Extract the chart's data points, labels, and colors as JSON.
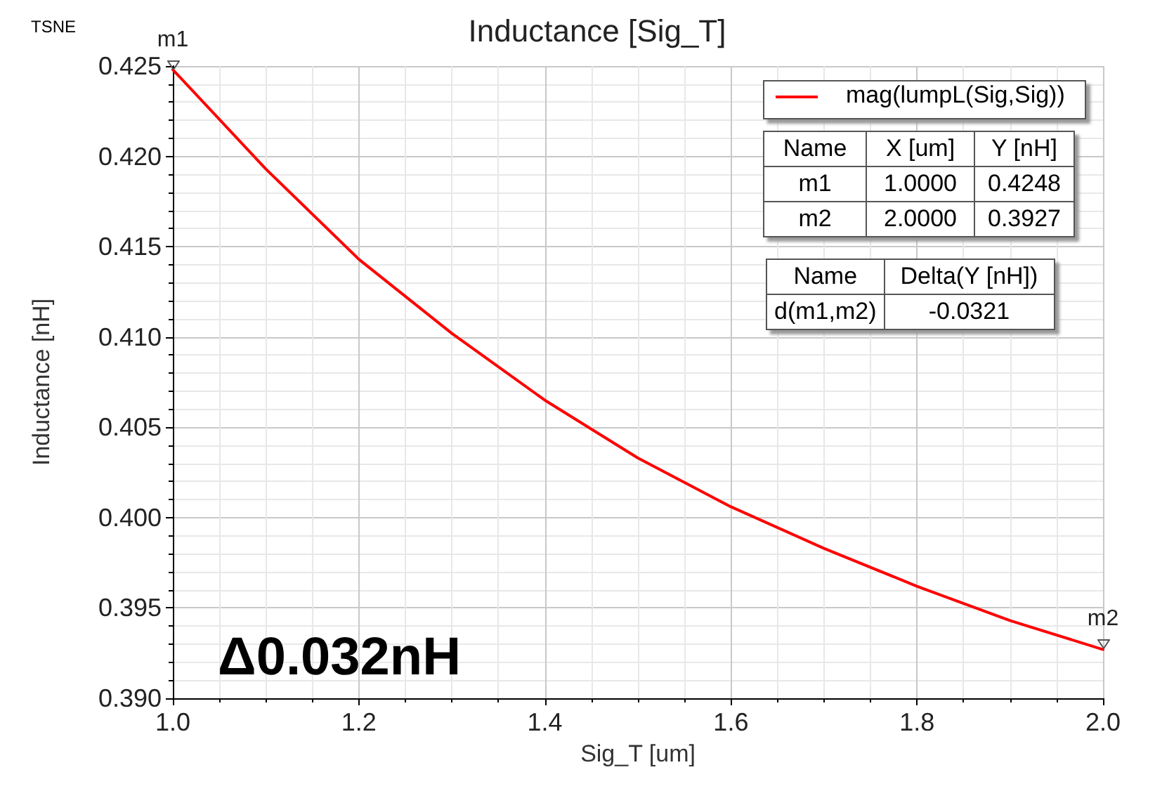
{
  "chart_data": {
    "type": "line",
    "title": "Inductance [Sig_T]",
    "xlabel": "Sig_T [um]",
    "ylabel": "Inductance [nH]",
    "x": [
      1.0,
      1.1,
      1.2,
      1.3,
      1.4,
      1.5,
      1.6,
      1.7,
      1.8,
      1.9,
      2.0
    ],
    "series": [
      {
        "name": "mag(lumpL(Sig,Sig))",
        "color": "#ff0000",
        "values": [
          0.4248,
          0.4193,
          0.4143,
          0.4102,
          0.4065,
          0.4033,
          0.4006,
          0.3983,
          0.3962,
          0.3943,
          0.3927
        ]
      }
    ],
    "xlim": [
      1.0,
      2.0
    ],
    "ylim": [
      0.39,
      0.425
    ],
    "xticks": [
      {
        "value": 1.0,
        "label": "1.0"
      },
      {
        "value": 1.2,
        "label": "1.2"
      },
      {
        "value": 1.4,
        "label": "1.4"
      },
      {
        "value": 1.6,
        "label": "1.6"
      },
      {
        "value": 1.8,
        "label": "1.8"
      },
      {
        "value": 2.0,
        "label": "2.0"
      }
    ],
    "yticks": [
      {
        "value": 0.39,
        "label": "0.390"
      },
      {
        "value": 0.395,
        "label": "0.395"
      },
      {
        "value": 0.4,
        "label": "0.400"
      },
      {
        "value": 0.405,
        "label": "0.405"
      },
      {
        "value": 0.41,
        "label": "0.410"
      },
      {
        "value": 0.415,
        "label": "0.415"
      },
      {
        "value": 0.42,
        "label": "0.420"
      },
      {
        "value": 0.425,
        "label": "0.425"
      }
    ],
    "grid": true,
    "legend": "top right",
    "marker": "none",
    "line_style": "solid",
    "annotations": [
      {
        "text": "m1",
        "x": 1.0,
        "y": 0.4248
      },
      {
        "text": "m2",
        "x": 2.0,
        "y": 0.3927
      },
      "TSNE",
      "Δ0.032nH",
      "Name",
      "X [um]",
      "Y [nH]",
      "m1",
      "1.0000",
      "0.4248",
      "m2",
      "2.0000",
      "0.3927",
      "Name",
      "Delta(Y [nH])",
      "d(m1,m2)",
      "-0.0321"
    ]
  }
}
